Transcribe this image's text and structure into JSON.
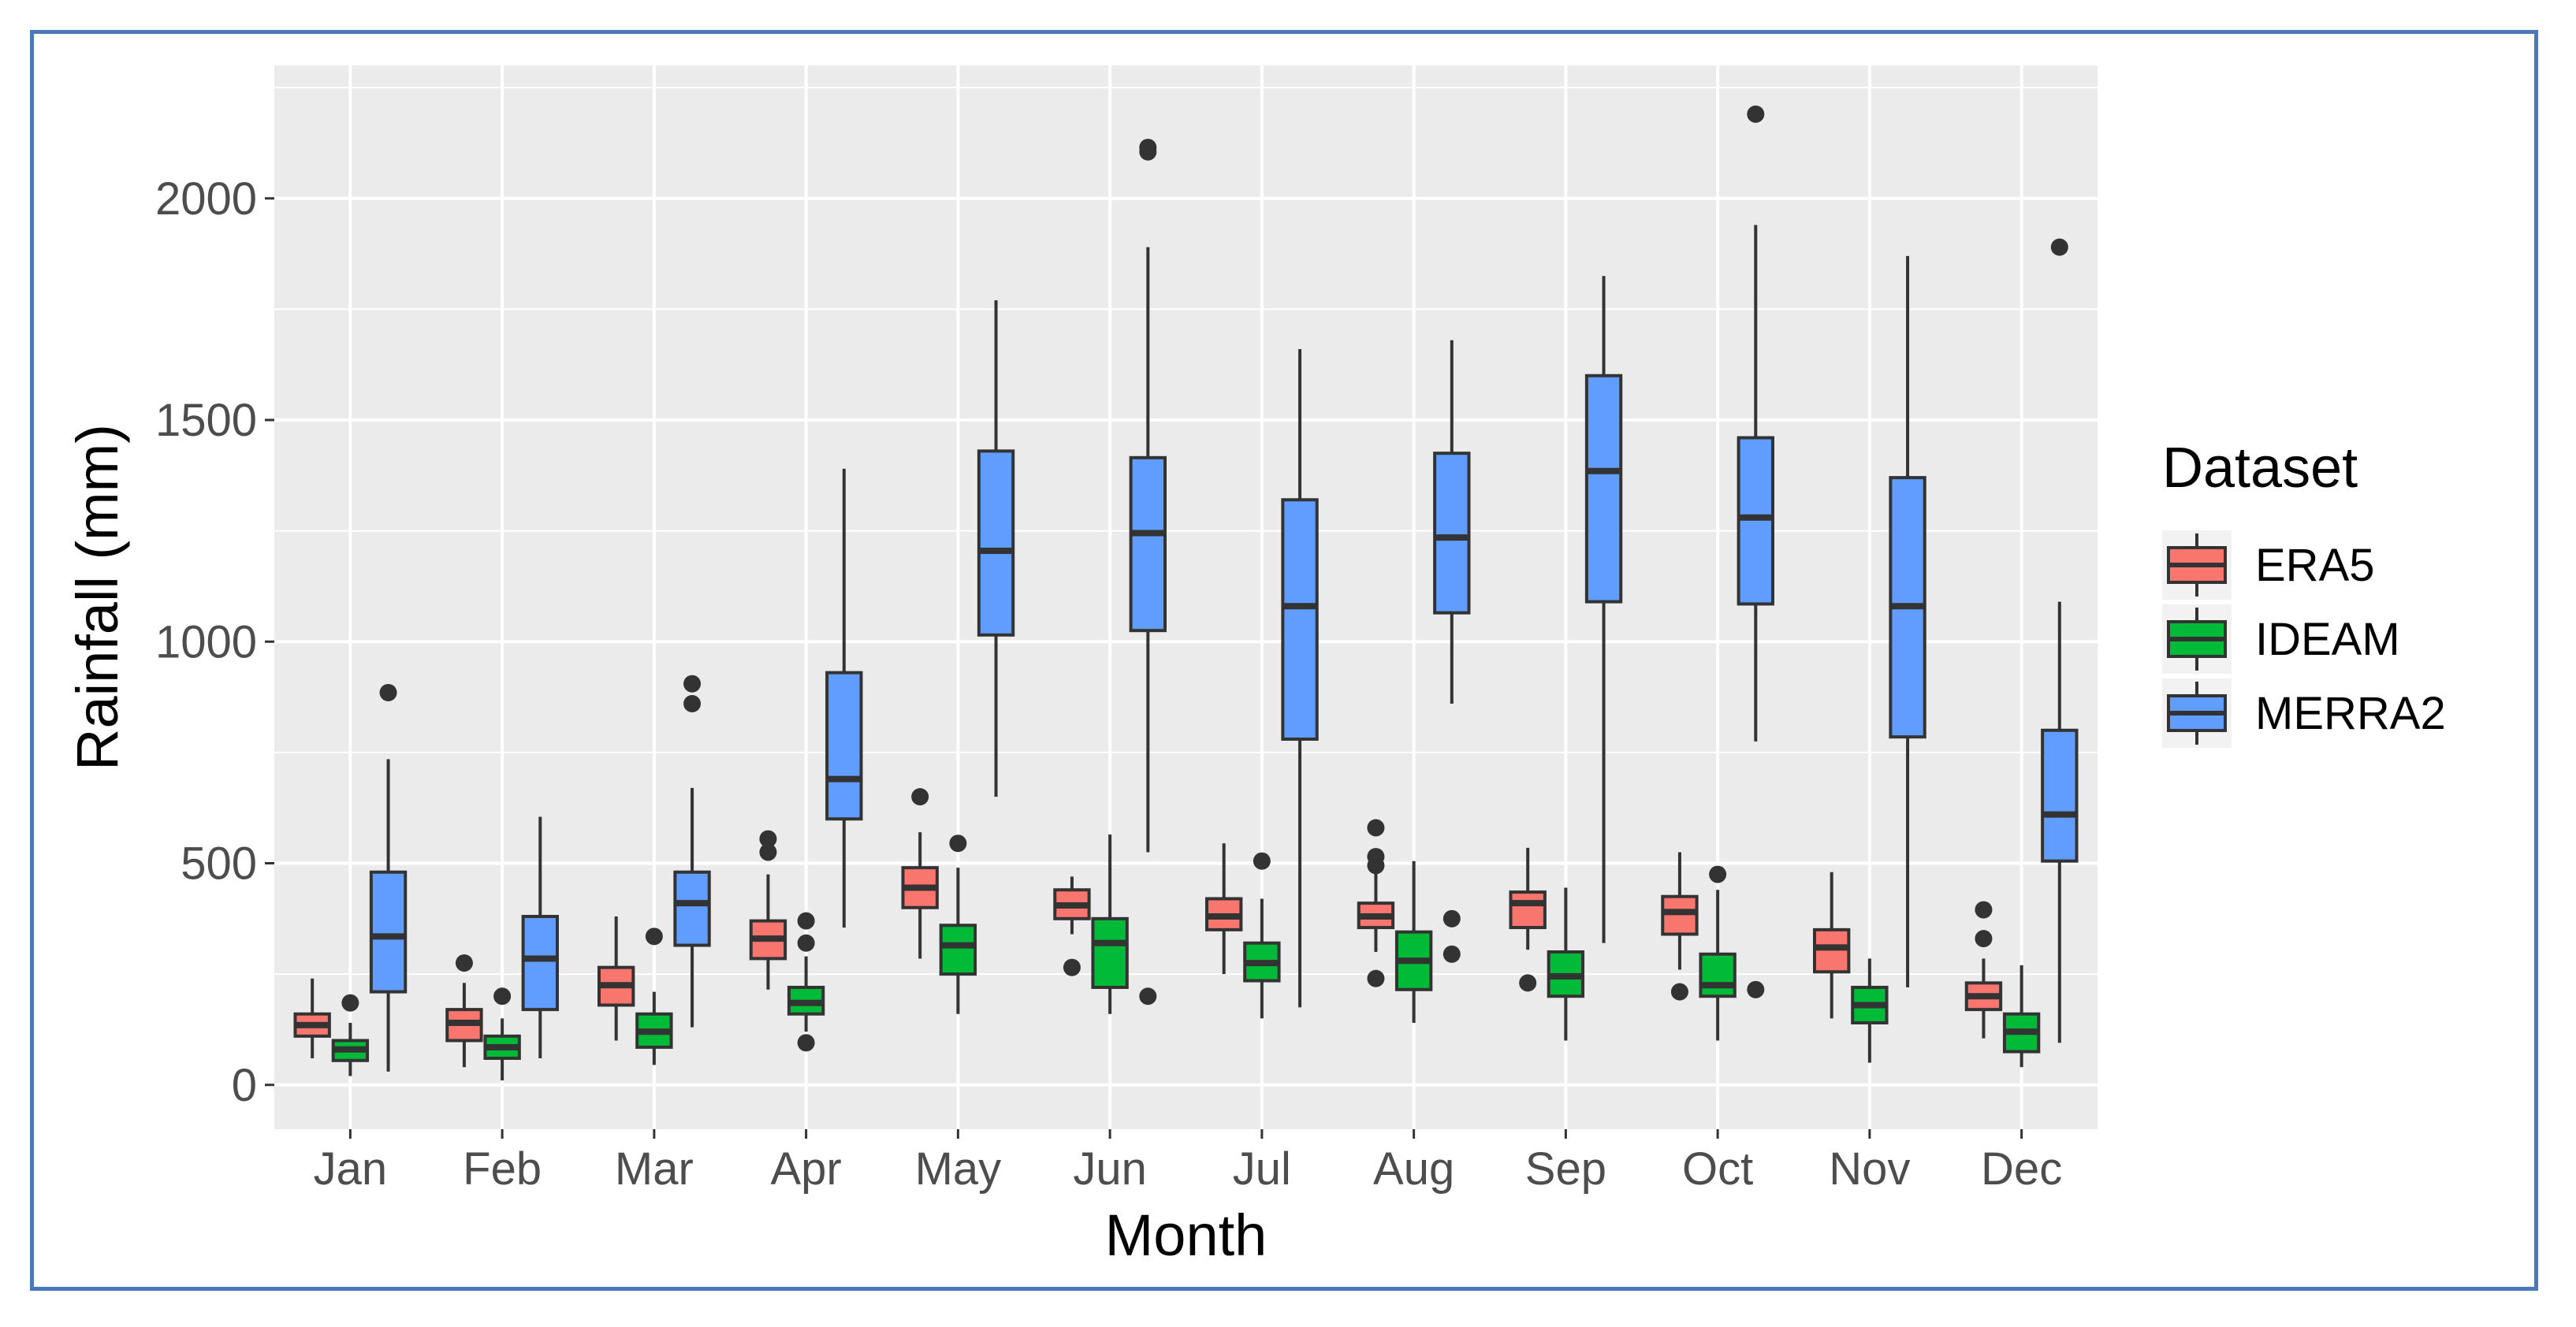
{
  "chart_data": {
    "type": "boxplot",
    "xlabel": "Month",
    "ylabel": "Rainfall (mm)",
    "ylim": [
      -100,
      2300
    ],
    "yticks": [
      0,
      500,
      1000,
      1500,
      2000
    ],
    "categories": [
      "Jan",
      "Feb",
      "Mar",
      "Apr",
      "May",
      "Jun",
      "Jul",
      "Aug",
      "Sep",
      "Oct",
      "Nov",
      "Dec"
    ],
    "legend": {
      "title": "Dataset",
      "position": "right"
    },
    "grid": true,
    "series": [
      {
        "name": "ERA5",
        "color": "#F8766D",
        "boxes": [
          {
            "lower": 60,
            "q1": 110,
            "median": 135,
            "q3": 160,
            "upper": 240,
            "outliers": []
          },
          {
            "lower": 40,
            "q1": 100,
            "median": 140,
            "q3": 170,
            "upper": 230,
            "outliers": [
              275
            ]
          },
          {
            "lower": 100,
            "q1": 180,
            "median": 225,
            "q3": 265,
            "upper": 380,
            "outliers": []
          },
          {
            "lower": 215,
            "q1": 285,
            "median": 330,
            "q3": 370,
            "upper": 475,
            "outliers": [
              525,
              555
            ]
          },
          {
            "lower": 285,
            "q1": 400,
            "median": 445,
            "q3": 490,
            "upper": 570,
            "outliers": [
              650
            ]
          },
          {
            "lower": 340,
            "q1": 375,
            "median": 405,
            "q3": 440,
            "upper": 470,
            "outliers": [
              265
            ]
          },
          {
            "lower": 250,
            "q1": 350,
            "median": 380,
            "q3": 420,
            "upper": 545,
            "outliers": []
          },
          {
            "lower": 300,
            "q1": 355,
            "median": 380,
            "q3": 410,
            "upper": 480,
            "outliers": [
              495,
              515,
              580,
              240
            ]
          },
          {
            "lower": 305,
            "q1": 355,
            "median": 410,
            "q3": 435,
            "upper": 535,
            "outliers": [
              230
            ]
          },
          {
            "lower": 260,
            "q1": 340,
            "median": 390,
            "q3": 425,
            "upper": 525,
            "outliers": [
              210
            ]
          },
          {
            "lower": 150,
            "q1": 255,
            "median": 310,
            "q3": 350,
            "upper": 480,
            "outliers": []
          },
          {
            "lower": 105,
            "q1": 170,
            "median": 200,
            "q3": 230,
            "upper": 285,
            "outliers": [
              330,
              395
            ]
          }
        ]
      },
      {
        "name": "IDEAM",
        "color": "#00BA38",
        "boxes": [
          {
            "lower": 20,
            "q1": 55,
            "median": 80,
            "q3": 100,
            "upper": 140,
            "outliers": [
              185
            ]
          },
          {
            "lower": 10,
            "q1": 60,
            "median": 85,
            "q3": 110,
            "upper": 150,
            "outliers": [
              200
            ]
          },
          {
            "lower": 45,
            "q1": 85,
            "median": 120,
            "q3": 160,
            "upper": 210,
            "outliers": [
              335
            ]
          },
          {
            "lower": 120,
            "q1": 160,
            "median": 185,
            "q3": 220,
            "upper": 290,
            "outliers": [
              320,
              370,
              95
            ]
          },
          {
            "lower": 160,
            "q1": 250,
            "median": 315,
            "q3": 360,
            "upper": 490,
            "outliers": [
              545
            ]
          },
          {
            "lower": 160,
            "q1": 220,
            "median": 320,
            "q3": 375,
            "upper": 565,
            "outliers": []
          },
          {
            "lower": 150,
            "q1": 235,
            "median": 275,
            "q3": 320,
            "upper": 420,
            "outliers": [
              505
            ]
          },
          {
            "lower": 140,
            "q1": 215,
            "median": 280,
            "q3": 345,
            "upper": 505,
            "outliers": []
          },
          {
            "lower": 100,
            "q1": 200,
            "median": 245,
            "q3": 300,
            "upper": 445,
            "outliers": []
          },
          {
            "lower": 100,
            "q1": 200,
            "median": 225,
            "q3": 295,
            "upper": 440,
            "outliers": [
              475
            ]
          },
          {
            "lower": 50,
            "q1": 140,
            "median": 180,
            "q3": 220,
            "upper": 285,
            "outliers": []
          },
          {
            "lower": 40,
            "q1": 75,
            "median": 120,
            "q3": 160,
            "upper": 270,
            "outliers": []
          }
        ]
      },
      {
        "name": "MERRA2",
        "color": "#619CFF",
        "boxes": [
          {
            "lower": 30,
            "q1": 210,
            "median": 335,
            "q3": 480,
            "upper": 735,
            "outliers": [
              885
            ]
          },
          {
            "lower": 60,
            "q1": 170,
            "median": 285,
            "q3": 380,
            "upper": 605,
            "outliers": []
          },
          {
            "lower": 130,
            "q1": 315,
            "median": 410,
            "q3": 480,
            "upper": 670,
            "outliers": [
              860,
              905
            ]
          },
          {
            "lower": 355,
            "q1": 600,
            "median": 690,
            "q3": 930,
            "upper": 1390,
            "outliers": []
          },
          {
            "lower": 650,
            "q1": 1015,
            "median": 1205,
            "q3": 1430,
            "upper": 1770,
            "outliers": []
          },
          {
            "lower": 525,
            "q1": 1025,
            "median": 1245,
            "q3": 1415,
            "upper": 1890,
            "outliers": [
              2105,
              2115,
              200
            ]
          },
          {
            "lower": 175,
            "q1": 780,
            "median": 1080,
            "q3": 1320,
            "upper": 1660,
            "outliers": []
          },
          {
            "lower": 860,
            "q1": 1065,
            "median": 1235,
            "q3": 1425,
            "upper": 1680,
            "outliers": [
              295,
              375
            ]
          },
          {
            "lower": 320,
            "q1": 1090,
            "median": 1385,
            "q3": 1600,
            "upper": 1825,
            "outliers": []
          },
          {
            "lower": 775,
            "q1": 1085,
            "median": 1280,
            "q3": 1460,
            "upper": 1940,
            "outliers": [
              2190,
              215
            ]
          },
          {
            "lower": 220,
            "q1": 785,
            "median": 1080,
            "q3": 1370,
            "upper": 1870,
            "outliers": []
          },
          {
            "lower": 95,
            "q1": 505,
            "median": 610,
            "q3": 800,
            "upper": 1090,
            "outliers": [
              1890
            ]
          }
        ]
      }
    ]
  }
}
